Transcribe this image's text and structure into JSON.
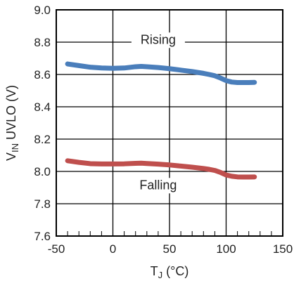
{
  "chart_data": {
    "type": "line",
    "xlabel": {
      "main": "T",
      "sub": "J",
      "unit": " (°C)"
    },
    "ylabel": {
      "main": "V",
      "sub": "IN",
      "rest": " UVLO (V)"
    },
    "xlim": [
      -50,
      150
    ],
    "ylim": [
      7.6,
      9.0
    ],
    "x_ticks": [
      -50,
      0,
      50,
      100,
      150
    ],
    "x_tick_labels": [
      "-50",
      "0",
      "50",
      "100",
      "150"
    ],
    "y_ticks": [
      7.6,
      7.8,
      8.0,
      8.2,
      8.4,
      8.6,
      8.8,
      9.0
    ],
    "y_tick_labels": [
      "7.6",
      "7.8",
      "8.0",
      "8.2",
      "8.4",
      "8.6",
      "8.8",
      "9.0"
    ],
    "x_minor_step": 10,
    "grid": true,
    "annotations": [
      {
        "text": "Rising",
        "x": 40,
        "y": 8.79
      },
      {
        "text": "Falling",
        "x": 40,
        "y": 7.89
      }
    ],
    "series": [
      {
        "name": "Rising",
        "color": "#4a7ebb",
        "x": [
          -40,
          -30,
          -20,
          -10,
          0,
          10,
          20,
          25,
          30,
          40,
          50,
          60,
          70,
          80,
          85,
          90,
          95,
          100,
          105,
          110,
          115,
          120,
          125
        ],
        "y": [
          8.665,
          8.655,
          8.645,
          8.64,
          8.638,
          8.64,
          8.648,
          8.65,
          8.648,
          8.643,
          8.636,
          8.627,
          8.618,
          8.607,
          8.6,
          8.592,
          8.578,
          8.562,
          8.553,
          8.55,
          8.55,
          8.55,
          8.551
        ]
      },
      {
        "name": "Falling",
        "color": "#bf4f4d",
        "x": [
          -40,
          -30,
          -20,
          -10,
          0,
          10,
          20,
          25,
          30,
          40,
          50,
          60,
          70,
          80,
          85,
          90,
          95,
          100,
          105,
          110,
          115,
          120,
          125
        ],
        "y": [
          8.066,
          8.056,
          8.048,
          8.046,
          8.046,
          8.047,
          8.05,
          8.051,
          8.049,
          8.045,
          8.04,
          8.033,
          8.026,
          8.018,
          8.013,
          8.006,
          7.994,
          7.978,
          7.97,
          7.966,
          7.965,
          7.965,
          7.966
        ]
      }
    ]
  }
}
